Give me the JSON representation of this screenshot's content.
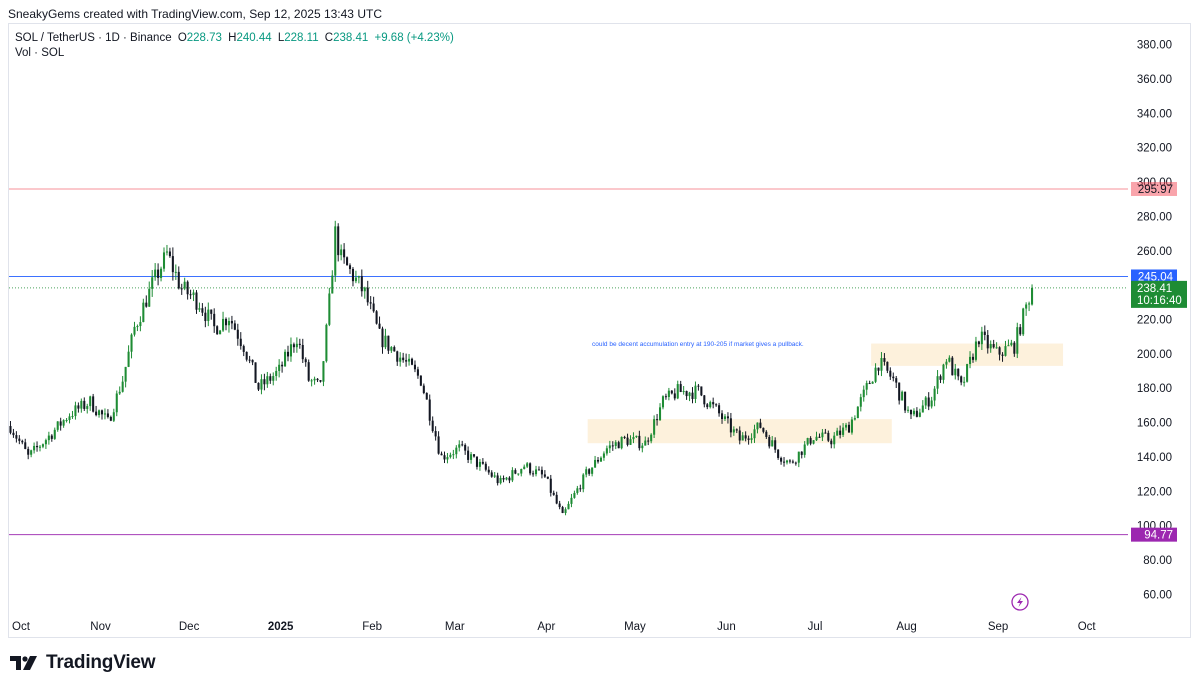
{
  "header": {
    "attribution": "SneakyGems created with TradingView.com, Sep 12, 2025 13:43 UTC"
  },
  "legend": {
    "symbol": "SOL / TetherUS · 1D · Binance",
    "open_label": "O",
    "open": "228.73",
    "high_label": "H",
    "high": "240.44",
    "low_label": "L",
    "low": "228.11",
    "close_label": "C",
    "close": "238.41",
    "change": "+9.68 (+4.23%)",
    "volume": "Vol · SOL"
  },
  "annotation": "could be decent accumulation entry at 190-205 if market gives a pullback.",
  "footer": {
    "brand": "TradingView"
  },
  "colors": {
    "up": "#089981",
    "candle_up": "#1e8c34",
    "candle_down": "#131722",
    "resistance_high": "#f23645",
    "resistance_mid": "#2962ff",
    "support_low": "#9c27b0",
    "zone_fill": "#fdf1dc",
    "annotation_text": "#2962ff",
    "lightning_icon": "#9c27b0"
  },
  "chart_data": {
    "type": "candlestick",
    "title": "SOL / TetherUS · 1D · Binance",
    "y_axis": {
      "ticks": [
        60,
        80,
        100,
        120,
        140,
        160,
        180,
        200,
        220,
        240,
        260,
        280,
        300,
        320,
        340,
        360,
        380
      ],
      "tick_labels": [
        "60.00",
        "80.00",
        "100.00",
        "120.00",
        "140.00",
        "160.00",
        "180.00",
        "200.00",
        "220.00",
        "240.00",
        "260.00",
        "280.00",
        "300.00",
        "320.00",
        "340.00",
        "360.00",
        "380.00"
      ],
      "range": [
        48,
        392
      ]
    },
    "x_axis": {
      "labels": [
        "Oct",
        "Nov",
        "Dec",
        "2025",
        "Feb",
        "Mar",
        "Apr",
        "May",
        "Jun",
        "Jul",
        "Aug",
        "Sep",
        "Oct"
      ],
      "bold": [
        false,
        false,
        false,
        true,
        false,
        false,
        false,
        false,
        false,
        false,
        false,
        false,
        false
      ],
      "range": [
        "2024-10-01",
        "2025-10-15"
      ]
    },
    "horizontal_lines": [
      {
        "value": 295.97,
        "label": "295.97",
        "color": "#f23645"
      },
      {
        "value": 245.04,
        "label": "245.04",
        "color": "#2962ff"
      },
      {
        "value": 94.77,
        "label": "94.77",
        "color": "#9c27b0"
      }
    ],
    "current_price": {
      "value": 238.41,
      "label": "238.41",
      "countdown": "10:16:40",
      "color": "#1e8c34"
    },
    "zones": [
      {
        "from": "2025-04-15",
        "to": "2025-07-27",
        "low": 148,
        "high": 162
      },
      {
        "from": "2025-07-20",
        "to": "2025-09-23",
        "low": 193,
        "high": 206
      }
    ],
    "series": [
      {
        "name": "SOL / TetherUS",
        "points": [
          [
            "2024-10-01",
            158
          ],
          [
            "2024-10-07",
            140
          ],
          [
            "2024-10-14",
            152
          ],
          [
            "2024-10-21",
            165
          ],
          [
            "2024-10-28",
            172
          ],
          [
            "2024-11-03",
            160
          ],
          [
            "2024-11-08",
            185
          ],
          [
            "2024-11-12",
            215
          ],
          [
            "2024-11-18",
            240
          ],
          [
            "2024-11-23",
            258
          ],
          [
            "2024-11-28",
            238
          ],
          [
            "2024-12-04",
            230
          ],
          [
            "2024-12-09",
            215
          ],
          [
            "2024-12-14",
            222
          ],
          [
            "2024-12-19",
            205
          ],
          [
            "2024-12-24",
            180
          ],
          [
            "2024-12-31",
            190
          ],
          [
            "2025-01-06",
            210
          ],
          [
            "2025-01-10",
            185
          ],
          [
            "2025-01-14",
            180
          ],
          [
            "2025-01-17",
            230
          ],
          [
            "2025-01-19",
            270
          ],
          [
            "2025-01-21",
            255
          ],
          [
            "2025-01-24",
            248
          ],
          [
            "2025-01-29",
            235
          ],
          [
            "2025-02-03",
            210
          ],
          [
            "2025-02-09",
            200
          ],
          [
            "2025-02-17",
            185
          ],
          [
            "2025-02-24",
            140
          ],
          [
            "2025-03-02",
            145
          ],
          [
            "2025-03-09",
            135
          ],
          [
            "2025-03-16",
            125
          ],
          [
            "2025-03-24",
            135
          ],
          [
            "2025-03-31",
            128
          ],
          [
            "2025-04-06",
            105
          ],
          [
            "2025-04-09",
            115
          ],
          [
            "2025-04-14",
            130
          ],
          [
            "2025-04-21",
            145
          ],
          [
            "2025-04-27",
            150
          ],
          [
            "2025-05-04",
            148
          ],
          [
            "2025-05-10",
            172
          ],
          [
            "2025-05-15",
            178
          ],
          [
            "2025-05-22",
            178
          ],
          [
            "2025-05-29",
            165
          ],
          [
            "2025-06-05",
            150
          ],
          [
            "2025-06-12",
            158
          ],
          [
            "2025-06-18",
            142
          ],
          [
            "2025-06-22",
            136
          ],
          [
            "2025-06-30",
            152
          ],
          [
            "2025-07-06",
            150
          ],
          [
            "2025-07-12",
            158
          ],
          [
            "2025-07-18",
            180
          ],
          [
            "2025-07-22",
            195
          ],
          [
            "2025-07-27",
            185
          ],
          [
            "2025-08-02",
            162
          ],
          [
            "2025-08-09",
            175
          ],
          [
            "2025-08-14",
            198
          ],
          [
            "2025-08-19",
            180
          ],
          [
            "2025-08-25",
            210
          ],
          [
            "2025-08-31",
            200
          ],
          [
            "2025-09-06",
            205
          ],
          [
            "2025-09-12",
            238.41
          ]
        ]
      }
    ]
  }
}
